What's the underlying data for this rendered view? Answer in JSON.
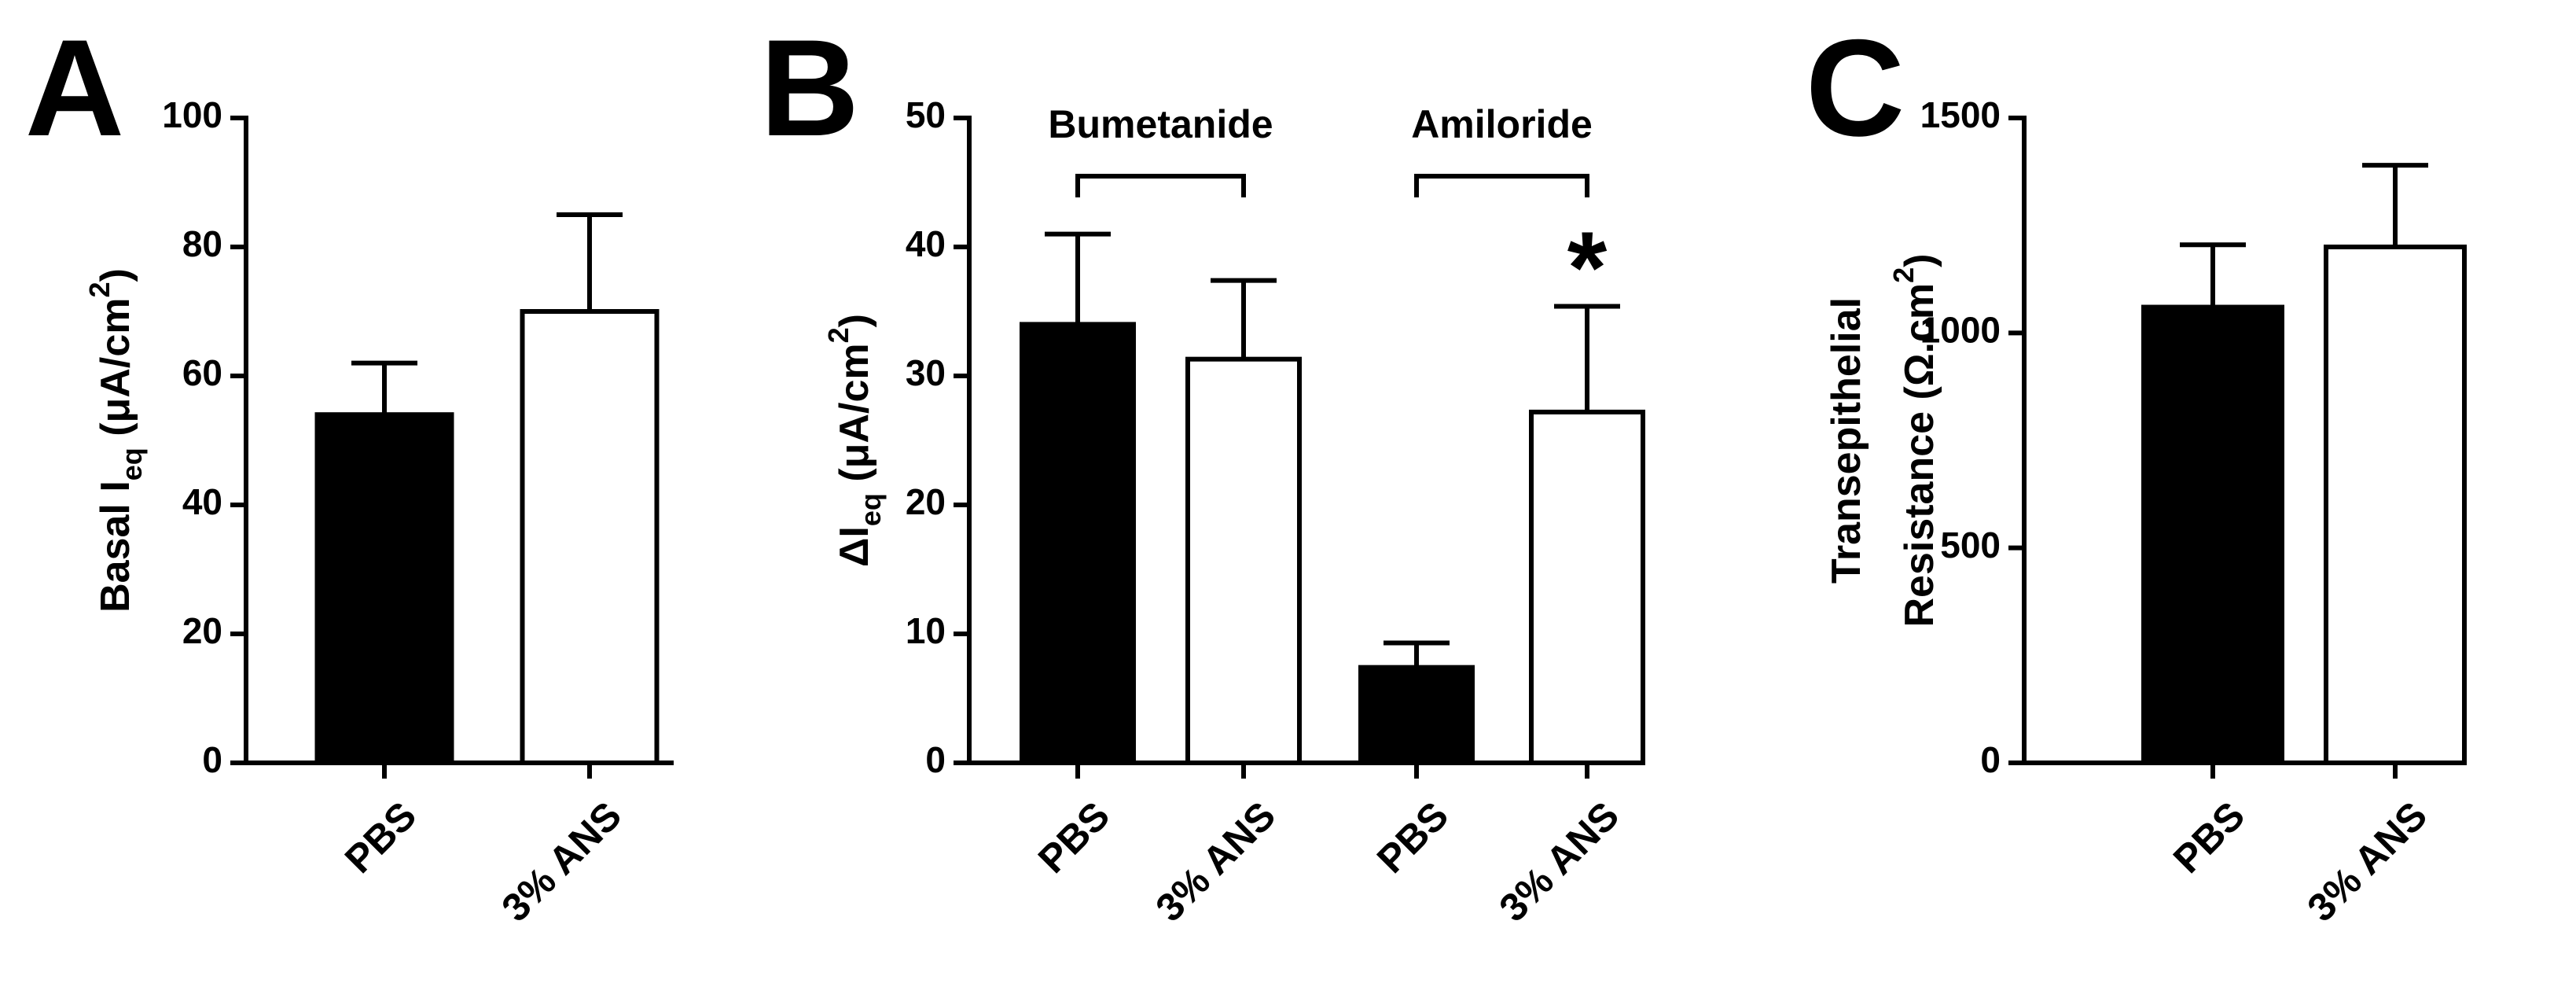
{
  "chart_data": [
    {
      "type": "bar",
      "panel_label": "A",
      "ylabel": [
        [
          {
            "text": "Basal I"
          },
          {
            "text": "eq",
            "shift": "sub"
          },
          {
            "text": " (μA/cm"
          },
          {
            "text": "2",
            "shift": "sup"
          },
          {
            "text": ")"
          }
        ]
      ],
      "categories": [
        "PBS",
        "3% ANS"
      ],
      "values": [
        54,
        70
      ],
      "errors": [
        8,
        15
      ],
      "colors": [
        "#000000",
        "#ffffff"
      ],
      "ylim": [
        0,
        100
      ],
      "yticks": [
        0,
        20,
        40,
        60,
        80,
        100
      ]
    },
    {
      "type": "bar",
      "panel_label": "B",
      "ylabel": [
        [
          {
            "text": "ΔI"
          },
          {
            "text": "eq",
            "shift": "sub"
          },
          {
            "text": " (μA/cm"
          },
          {
            "text": "2",
            "shift": "sup"
          },
          {
            "text": ")"
          }
        ]
      ],
      "categories": [
        "PBS",
        "3% ANS",
        "PBS",
        "3% ANS"
      ],
      "values": [
        34,
        31.3,
        7.4,
        27.2
      ],
      "errors": [
        7,
        6.1,
        1.9,
        8.2
      ],
      "colors": [
        "#000000",
        "#ffffff",
        "#000000",
        "#ffffff"
      ],
      "ylim": [
        0,
        50
      ],
      "yticks": [
        0,
        10,
        20,
        30,
        40,
        50
      ],
      "brackets": [
        {
          "label": "Bumetanide",
          "from": 0,
          "to": 1
        },
        {
          "label": "Amiloride",
          "from": 2,
          "to": 3
        }
      ],
      "annotations": [
        {
          "text": "*",
          "category": 3
        }
      ]
    },
    {
      "type": "bar",
      "panel_label": "C",
      "ylabel": [
        [
          {
            "text": "Transepithelial"
          }
        ],
        [
          {
            "text": "Resistance (Ω.cm"
          },
          {
            "text": "2",
            "shift": "sup"
          },
          {
            "text": ")"
          }
        ]
      ],
      "categories": [
        "PBS",
        "3% ANS"
      ],
      "values": [
        1060,
        1200
      ],
      "errors": [
        145,
        190
      ],
      "colors": [
        "#000000",
        "#ffffff"
      ],
      "ylim": [
        0,
        1500
      ],
      "yticks": [
        0,
        500,
        1000,
        1500
      ]
    }
  ]
}
